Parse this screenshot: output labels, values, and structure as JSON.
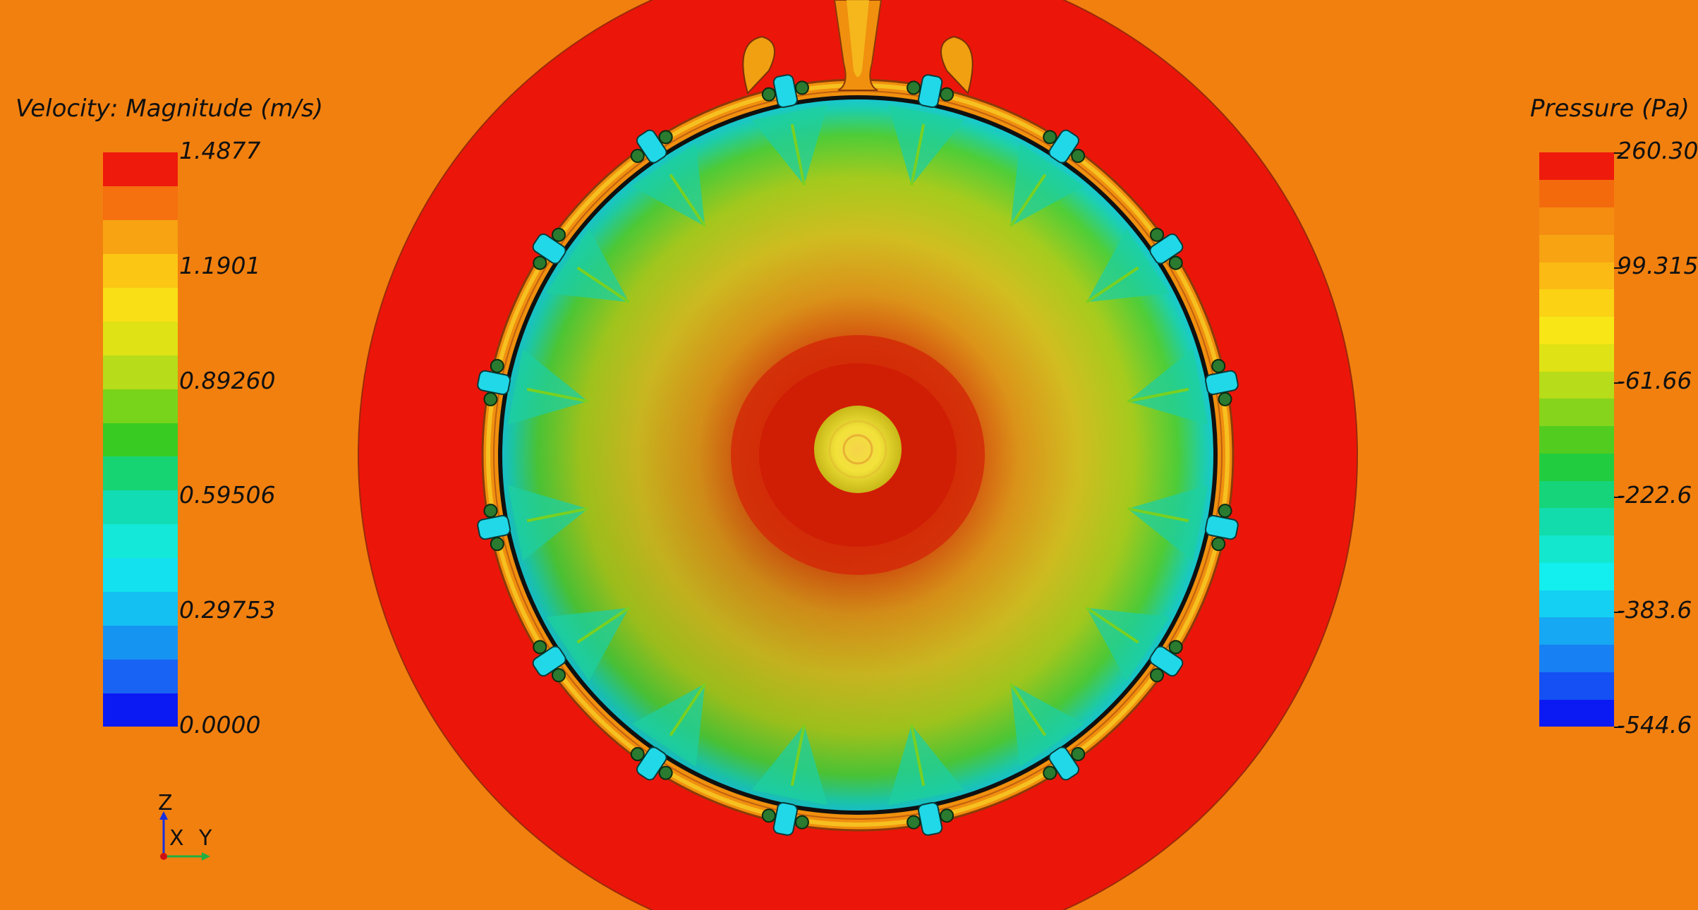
{
  "velocity_legend": {
    "title": "Velocity: Magnitude (m/s)",
    "labels": [
      "1.4877",
      "1.1901",
      "0.89260",
      "0.59506",
      "0.29753",
      "0.0000"
    ],
    "colors": [
      "#0b1af2",
      "#1863f3",
      "#1694f2",
      "#14bff2",
      "#13e1ef",
      "#14e8d8",
      "#12dcb3",
      "#17d473",
      "#38cc23",
      "#78d41a",
      "#b6dc1a",
      "#dfe214",
      "#f8df16",
      "#fbc614",
      "#f7a312",
      "#f5700f",
      "#ee1a0b"
    ]
  },
  "pressure_legend": {
    "title": "Pressure (Pa)",
    "labels": [
      "260.30",
      "99.315",
      "-61.66",
      "-222.6",
      "-383.6",
      "-544.6"
    ],
    "colors": [
      "#0b1af2",
      "#1450f3",
      "#1780f2",
      "#16a8f2",
      "#14d0f2",
      "#13eeee",
      "#13e7cd",
      "#12dcab",
      "#15d47a",
      "#22cc3f",
      "#52cc1f",
      "#86d41b",
      "#b6dc1a",
      "#dfe214",
      "#f8e616",
      "#fbd214",
      "#fbba14",
      "#f7a312",
      "#f58d10",
      "#f36a0d",
      "#ee1a0b"
    ]
  },
  "axes": {
    "z": "Z",
    "x": "X",
    "y": "Y"
  },
  "colors": {
    "background": "#f2800f",
    "outer_ring": "#ec150a",
    "shell": "#18d8c0",
    "center_hot": "#d31b06",
    "hub": "#f0e030"
  }
}
